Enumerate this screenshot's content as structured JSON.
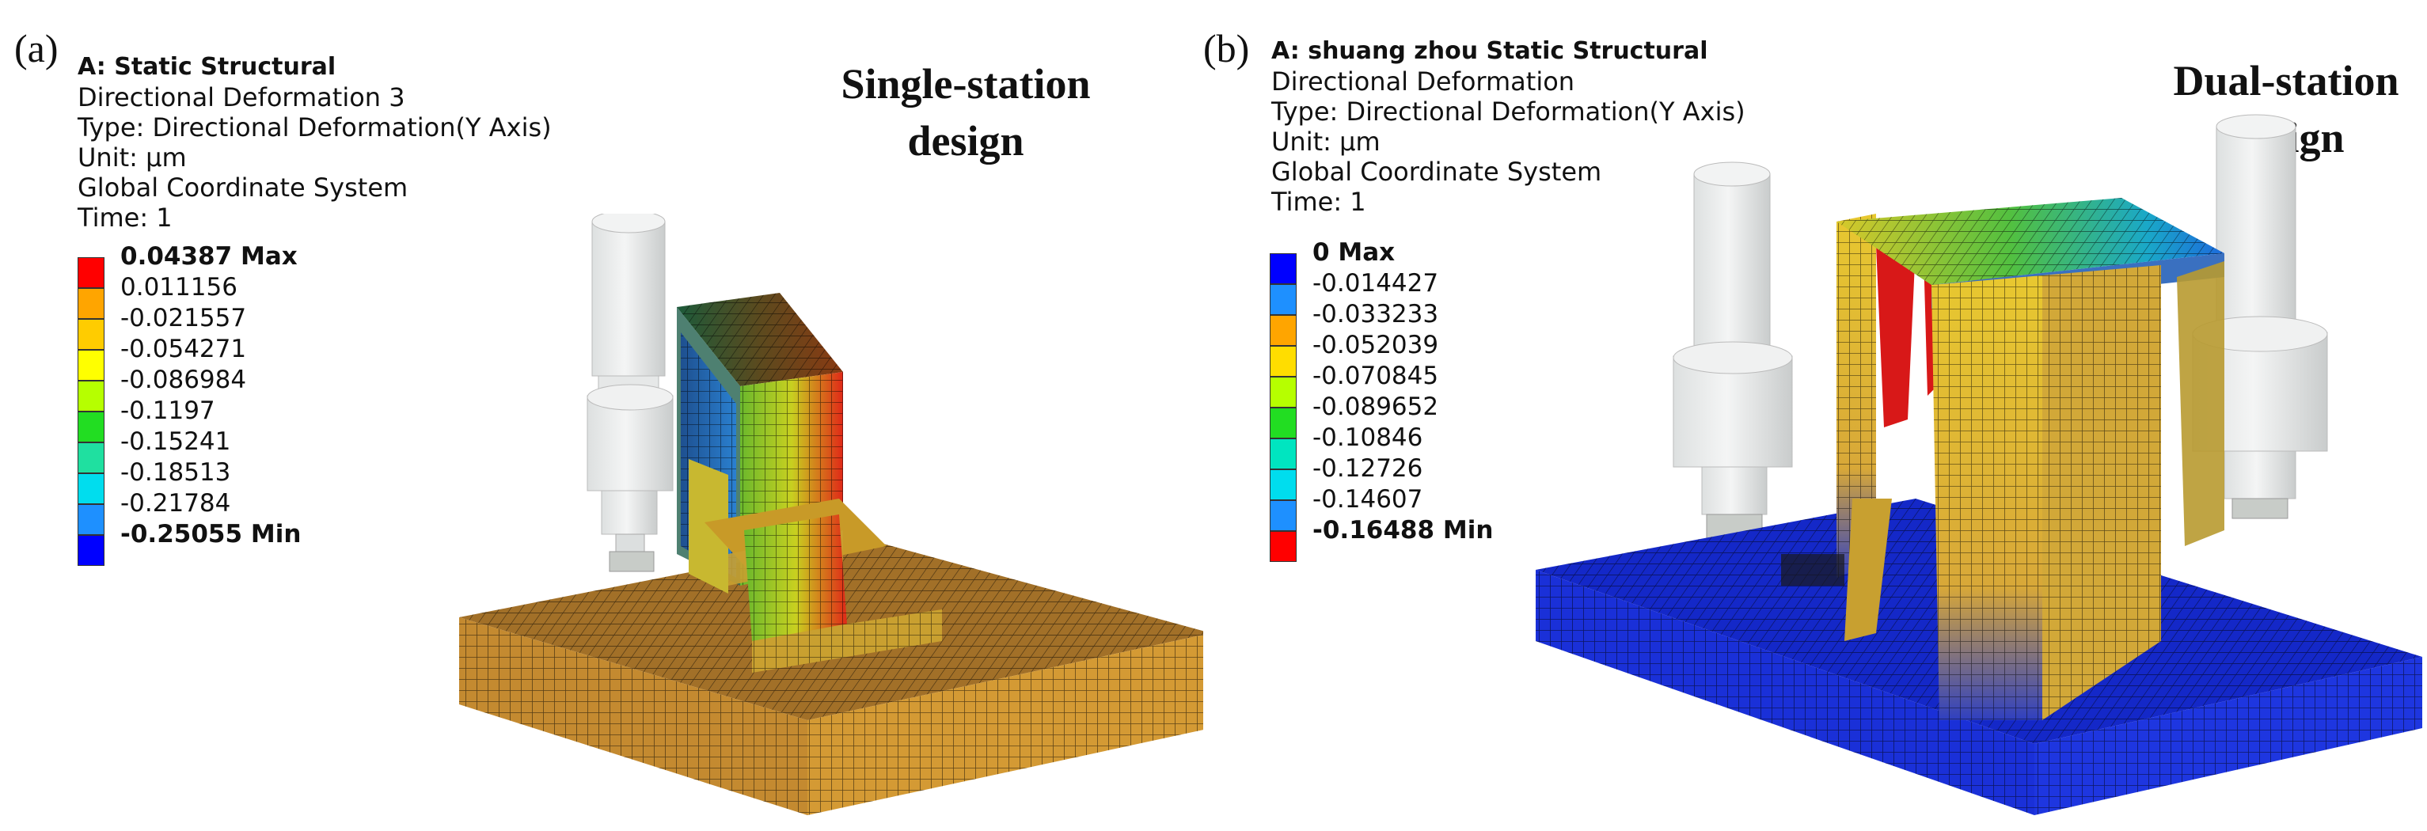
{
  "panels": [
    {
      "label": "(a)",
      "design_line1": "Single-station",
      "design_line2": "design",
      "info": {
        "title": "A: Static Structural",
        "lines": [
          "Directional Deformation 3",
          "Type: Directional Deformation(Y Axis)",
          "Unit: µm",
          "Global Coordinate System",
          "Time: 1"
        ]
      },
      "legend": [
        {
          "label": "0.04387 Max",
          "color": "#ff0000",
          "bold": true
        },
        {
          "label": "0.011156",
          "color": "#ffa500",
          "bold": false
        },
        {
          "label": "-0.021557",
          "color": "#ffcc00",
          "bold": false
        },
        {
          "label": "-0.054271",
          "color": "#ffff00",
          "bold": false
        },
        {
          "label": "-0.086984",
          "color": "#b6ff00",
          "bold": false
        },
        {
          "label": "-0.1197",
          "color": "#22dd22",
          "bold": false
        },
        {
          "label": "-0.15241",
          "color": "#1fe0a0",
          "bold": false
        },
        {
          "label": "-0.18513",
          "color": "#00ddee",
          "bold": false
        },
        {
          "label": "-0.21784",
          "color": "#1e90ff",
          "bold": false
        },
        {
          "label": "-0.25055 Min",
          "color": "#0000ff",
          "bold": true
        }
      ]
    },
    {
      "label": "(b)",
      "design_line1": "Dual-station",
      "design_line2": "design",
      "info": {
        "title": "A: shuang zhou Static Structural",
        "lines": [
          "Directional Deformation",
          "Type: Directional Deformation(Y Axis)",
          "Unit: µm",
          "Global Coordinate System",
          "Time: 1"
        ]
      },
      "legend": [
        {
          "label": "0 Max",
          "color": "#0000ff",
          "bold": true
        },
        {
          "label": "-0.014427",
          "color": "#1e90ff",
          "bold": false
        },
        {
          "label": "-0.033233",
          "color": "#ffa500",
          "bold": false
        },
        {
          "label": "-0.052039",
          "color": "#ffdd00",
          "bold": false
        },
        {
          "label": "-0.070845",
          "color": "#b6ff00",
          "bold": false
        },
        {
          "label": "-0.089652",
          "color": "#22dd22",
          "bold": false
        },
        {
          "label": "-0.10846",
          "color": "#00e5c0",
          "bold": false
        },
        {
          "label": "-0.12726",
          "color": "#00ddee",
          "bold": false
        },
        {
          "label": "-0.14607",
          "color": "#1e90ff",
          "bold": false
        },
        {
          "label": "-0.16488 Min",
          "color": "#ff0000",
          "bold": true
        }
      ]
    }
  ]
}
